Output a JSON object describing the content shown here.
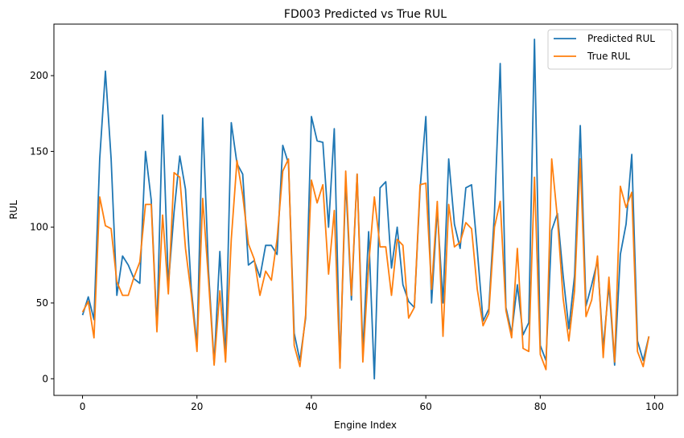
{
  "chart_data": {
    "type": "line",
    "title": "FD003 Predicted vs True RUL",
    "xlabel": "Engine Index",
    "ylabel": "RUL",
    "xlim": [
      -5,
      104
    ],
    "ylim": [
      -11,
      234
    ],
    "xticks": [
      0,
      20,
      40,
      60,
      80,
      100
    ],
    "yticks": [
      0,
      50,
      100,
      150,
      200
    ],
    "grid": false,
    "legend_position": "top-right",
    "x": [
      0,
      1,
      2,
      3,
      4,
      5,
      6,
      7,
      8,
      9,
      10,
      11,
      12,
      13,
      14,
      15,
      16,
      17,
      18,
      19,
      20,
      21,
      22,
      23,
      24,
      25,
      26,
      27,
      28,
      29,
      30,
      31,
      32,
      33,
      34,
      35,
      36,
      37,
      38,
      39,
      40,
      41,
      42,
      43,
      44,
      45,
      46,
      47,
      48,
      49,
      50,
      51,
      52,
      53,
      54,
      55,
      56,
      57,
      58,
      59,
      60,
      61,
      62,
      63,
      64,
      65,
      66,
      67,
      68,
      69,
      70,
      71,
      72,
      73,
      74,
      75,
      76,
      77,
      78,
      79,
      80,
      81,
      82,
      83,
      84,
      85,
      86,
      87,
      88,
      89,
      90,
      91,
      92,
      93,
      94,
      95,
      96,
      97,
      98,
      99
    ],
    "series": [
      {
        "name": "Predicted RUL",
        "color": "#1f77b4",
        "values": [
          42,
          54,
          39,
          145,
          203,
          145,
          55,
          81,
          75,
          66,
          63,
          150,
          118,
          33,
          174,
          62,
          110,
          147,
          125,
          60,
          22,
          172,
          72,
          10,
          84,
          14,
          169,
          142,
          135,
          75,
          78,
          67,
          88,
          88,
          82,
          154,
          142,
          30,
          12,
          40,
          173,
          157,
          156,
          100,
          165,
          8,
          131,
          52,
          135,
          18,
          97,
          0,
          126,
          130,
          73,
          100,
          62,
          51,
          47,
          125,
          173,
          50,
          112,
          50,
          145,
          102,
          86,
          126,
          128,
          85,
          38,
          46,
          110,
          208,
          47,
          30,
          62,
          29,
          37,
          224,
          22,
          12,
          98,
          109,
          68,
          33,
          68,
          167,
          48,
          62,
          78,
          20,
          62,
          9,
          82,
          102,
          148,
          25,
          12,
          28
        ]
      },
      {
        "name": "True RUL",
        "color": "#ff7f0e",
        "values": [
          44,
          51,
          27,
          120,
          101,
          99,
          64,
          55,
          55,
          67,
          77,
          115,
          115,
          31,
          108,
          56,
          136,
          133,
          86,
          56,
          18,
          119,
          66,
          9,
          58,
          11,
          92,
          144,
          121,
          89,
          79,
          55,
          71,
          65,
          92,
          137,
          145,
          22,
          8,
          42,
          131,
          116,
          128,
          69,
          111,
          7,
          137,
          55,
          135,
          11,
          75,
          120,
          87,
          87,
          55,
          92,
          88,
          40,
          47,
          128,
          129,
          59,
          117,
          28,
          115,
          87,
          90,
          103,
          99,
          59,
          35,
          43,
          100,
          117,
          45,
          27,
          86,
          20,
          18,
          133,
          16,
          6,
          145,
          106,
          53,
          25,
          58,
          145,
          41,
          52,
          81,
          14,
          67,
          11,
          127,
          113,
          123,
          18,
          8,
          28
        ]
      }
    ]
  }
}
